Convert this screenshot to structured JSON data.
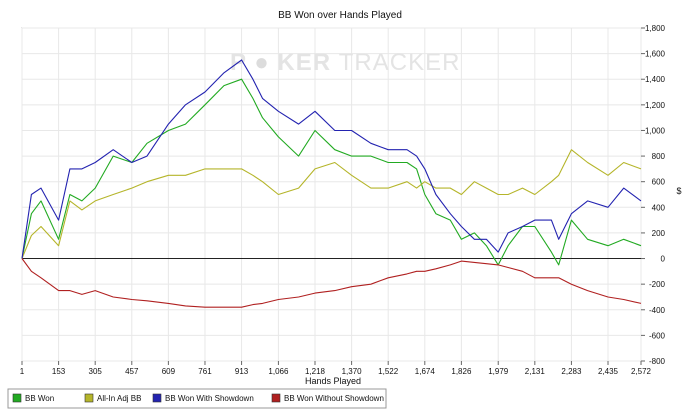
{
  "window": {
    "title": "BB Won over Hands Played"
  },
  "watermark": {
    "left": "P",
    "mid": "KER",
    "right": "TRACKER"
  },
  "colors": {
    "bb_won": "#22aa22",
    "all_in": "#b5b52a",
    "showdown": "#2323b0",
    "non_showdown": "#b02020"
  },
  "chart_data": {
    "type": "line",
    "title": "BB Won over Hands Played",
    "xlabel": "Hands Played",
    "ylabel": "$",
    "xlim": [
      1,
      2572
    ],
    "ylim": [
      -800,
      1800
    ],
    "x_ticks": [
      1,
      153,
      305,
      457,
      609,
      761,
      913,
      1066,
      1218,
      1370,
      1522,
      1674,
      1826,
      1979,
      2131,
      2283,
      2435,
      2572
    ],
    "x_tick_labels": [
      "1",
      "153",
      "305",
      "457",
      "609",
      "761",
      "913",
      "1,066",
      "1,218",
      "1,370",
      "1,522",
      "1,674",
      "1,826",
      "1,979",
      "2,131",
      "2,283",
      "2,435",
      "2,572"
    ],
    "y_ticks": [
      -800,
      -600,
      -400,
      -200,
      0,
      200,
      400,
      600,
      800,
      1000,
      1200,
      1400,
      1600,
      1800
    ],
    "y_tick_labels": [
      "-800",
      "-600",
      "-400",
      "-200",
      "0",
      "200",
      "400",
      "600",
      "800",
      "1,000",
      "1,200",
      "1,400",
      "1,600",
      "1,800"
    ],
    "legend_position": "bottom",
    "grid": true,
    "series": [
      {
        "name": "BB Won",
        "x": [
          1,
          40,
          80,
          153,
          200,
          250,
          305,
          380,
          457,
          520,
          609,
          680,
          761,
          840,
          913,
          960,
          1000,
          1066,
          1150,
          1218,
          1300,
          1370,
          1450,
          1522,
          1600,
          1640,
          1674,
          1720,
          1780,
          1826,
          1880,
          1930,
          1979,
          2020,
          2080,
          2131,
          2200,
          2230,
          2283,
          2350,
          2435,
          2500,
          2572
        ],
        "y": [
          0,
          350,
          450,
          150,
          500,
          450,
          550,
          800,
          750,
          900,
          1000,
          1050,
          1200,
          1350,
          1400,
          1250,
          1100,
          950,
          800,
          1000,
          850,
          800,
          800,
          750,
          750,
          700,
          500,
          350,
          300,
          150,
          200,
          100,
          -50,
          100,
          250,
          250,
          50,
          -50,
          300,
          150,
          100,
          150,
          100
        ]
      },
      {
        "name": "All-In Adj BB",
        "x": [
          1,
          40,
          80,
          153,
          200,
          250,
          305,
          380,
          457,
          520,
          609,
          680,
          761,
          840,
          913,
          960,
          1000,
          1066,
          1150,
          1218,
          1300,
          1370,
          1450,
          1522,
          1600,
          1640,
          1674,
          1720,
          1780,
          1826,
          1880,
          1930,
          1979,
          2020,
          2080,
          2131,
          2200,
          2230,
          2283,
          2350,
          2435,
          2500,
          2572
        ],
        "y": [
          0,
          180,
          250,
          100,
          450,
          380,
          450,
          500,
          550,
          600,
          650,
          650,
          700,
          700,
          700,
          650,
          600,
          500,
          550,
          700,
          750,
          650,
          550,
          550,
          600,
          550,
          600,
          550,
          550,
          500,
          600,
          550,
          500,
          500,
          550,
          500,
          600,
          650,
          850,
          750,
          650,
          750,
          700
        ]
      },
      {
        "name": "BB Won With Showdown",
        "x": [
          1,
          40,
          80,
          153,
          200,
          250,
          305,
          380,
          457,
          520,
          609,
          680,
          761,
          840,
          913,
          960,
          1000,
          1066,
          1150,
          1218,
          1300,
          1370,
          1450,
          1522,
          1600,
          1640,
          1674,
          1720,
          1780,
          1826,
          1880,
          1930,
          1979,
          2020,
          2080,
          2131,
          2200,
          2230,
          2283,
          2350,
          2435,
          2500,
          2572
        ],
        "y": [
          0,
          500,
          550,
          300,
          700,
          700,
          750,
          850,
          750,
          800,
          1050,
          1200,
          1300,
          1450,
          1550,
          1400,
          1250,
          1150,
          1050,
          1150,
          1000,
          1000,
          900,
          850,
          850,
          800,
          700,
          500,
          350,
          250,
          150,
          150,
          50,
          200,
          250,
          300,
          300,
          150,
          350,
          450,
          400,
          550,
          450
        ]
      },
      {
        "name": "BB Won Without Showdown",
        "x": [
          1,
          40,
          80,
          153,
          200,
          250,
          305,
          380,
          457,
          520,
          609,
          680,
          761,
          840,
          913,
          960,
          1000,
          1066,
          1150,
          1218,
          1300,
          1370,
          1450,
          1522,
          1600,
          1640,
          1674,
          1720,
          1780,
          1826,
          1880,
          1930,
          1979,
          2020,
          2080,
          2131,
          2200,
          2230,
          2283,
          2350,
          2435,
          2500,
          2572
        ],
        "y": [
          0,
          -100,
          -150,
          -250,
          -250,
          -280,
          -250,
          -300,
          -320,
          -330,
          -350,
          -370,
          -380,
          -380,
          -380,
          -360,
          -350,
          -320,
          -300,
          -270,
          -250,
          -220,
          -200,
          -150,
          -120,
          -100,
          -100,
          -80,
          -50,
          -20,
          -30,
          -40,
          -50,
          -70,
          -100,
          -150,
          -150,
          -150,
          -200,
          -250,
          -300,
          -320,
          -350
        ]
      }
    ]
  },
  "legend": [
    {
      "label": "BB Won"
    },
    {
      "label": "All-In Adj BB"
    },
    {
      "label": "BB Won With Showdown"
    },
    {
      "label": "BB Won Without Showdown"
    }
  ]
}
